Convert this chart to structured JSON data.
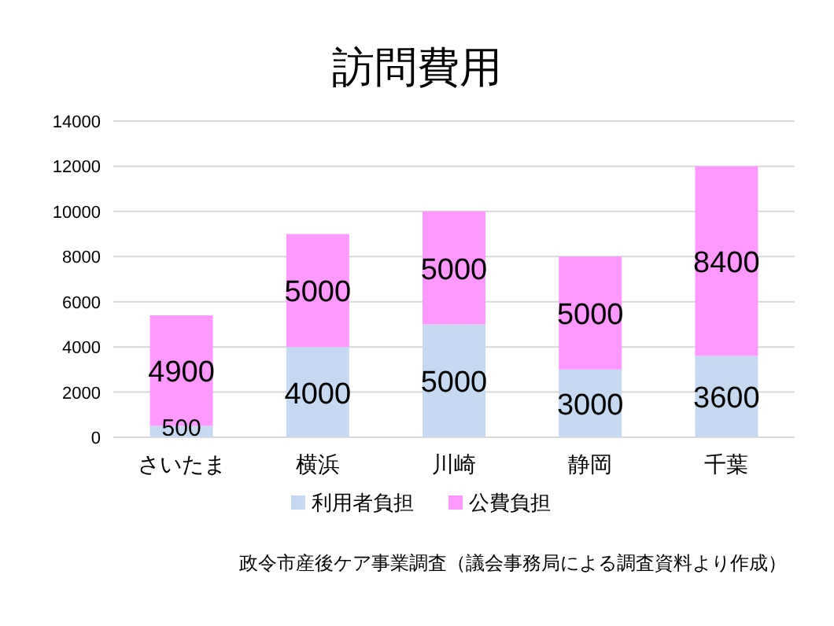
{
  "chart_data": {
    "type": "bar",
    "title": "訪問費用",
    "categories": [
      "さいたま",
      "横浜",
      "川崎",
      "静岡",
      "千葉"
    ],
    "stacked": true,
    "series": [
      {
        "name": "利用者負担",
        "color": "#c6d9f1",
        "values": [
          500,
          4000,
          5000,
          3000,
          3600
        ]
      },
      {
        "name": "公費負担",
        "color": "#ff99ff",
        "values": [
          4900,
          5000,
          5000,
          5000,
          8400
        ]
      }
    ],
    "ylim": [
      0,
      14000
    ],
    "yticks": [
      0,
      2000,
      4000,
      6000,
      8000,
      10000,
      12000,
      14000
    ],
    "grid": "y",
    "legend": "bottom",
    "data_labels": true,
    "annotations": [
      "政令市産後ケア事業調査（議会事務局による調査資料より作成）"
    ]
  }
}
